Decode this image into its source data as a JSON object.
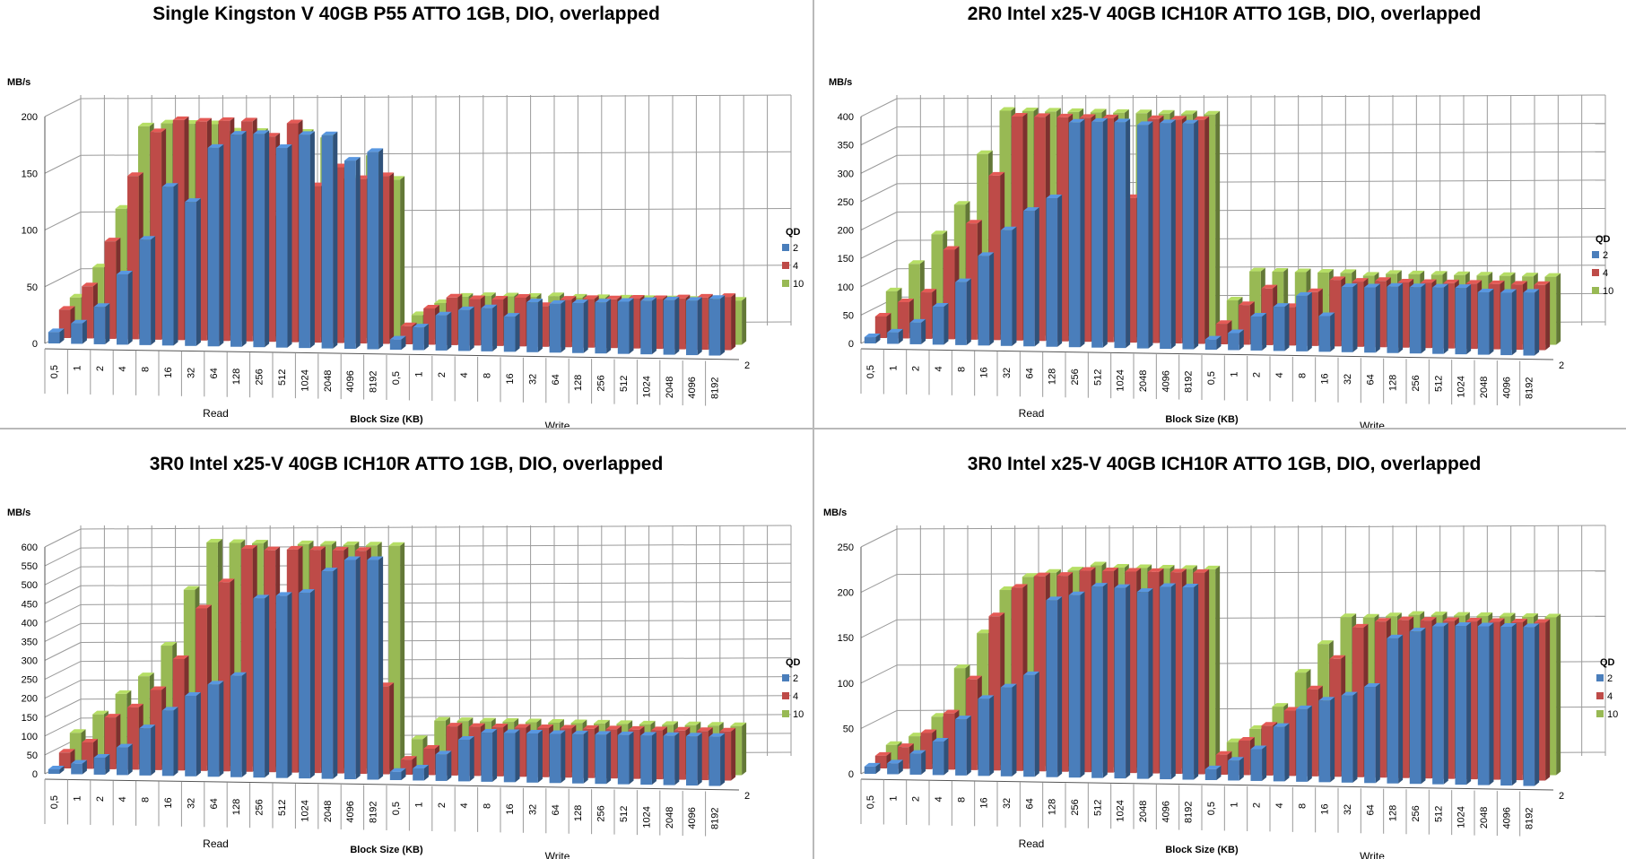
{
  "colors": {
    "qd2": "#4a7ebb",
    "qd4": "#be4b48",
    "qd10": "#98b954",
    "grid": "#9a9a9a"
  },
  "chart_data": [
    {
      "type": "bar",
      "title": "Single Kingston V 40GB P55 ATTO 1GB, DIO, overlapped",
      "ylabel": "MB/s",
      "xlabel": "Block Size (KB)",
      "groups": [
        "Read",
        "Write"
      ],
      "categories": [
        "0,5",
        "1",
        "2",
        "4",
        "8",
        "16",
        "32",
        "64",
        "128",
        "256",
        "512",
        "1024",
        "2048",
        "4096",
        "8192"
      ],
      "yticks": [
        "0",
        "50",
        "100",
        "150",
        "200"
      ],
      "ylim": [
        0,
        200
      ],
      "depth_label": "2",
      "legend": {
        "title": "QD",
        "placement": "right",
        "items": [
          "2",
          "4",
          "10"
        ]
      },
      "series": [
        {
          "name": "2",
          "read": [
            10,
            18,
            33,
            62,
            93,
            140,
            127,
            175,
            187,
            188,
            176,
            188,
            188,
            166,
            174
          ],
          "write": [
            9,
            20,
            31,
            36,
            38,
            31,
            44,
            43,
            44,
            45,
            46,
            47,
            48,
            48,
            50
          ]
        },
        {
          "name": "4",
          "read": [
            25,
            46,
            86,
            144,
            183,
            194,
            193,
            194,
            194,
            181,
            193,
            138,
            155,
            145,
            148
          ],
          "write": [
            16,
            32,
            42,
            41,
            41,
            43,
            36,
            42,
            43,
            43,
            44,
            44,
            45,
            46,
            47
          ]
        },
        {
          "name": "10",
          "read": [
            31,
            58,
            110,
            183,
            186,
            186,
            186,
            180,
            180,
            106,
            180,
            176,
            140,
            161,
            140
          ],
          "write": [
            21,
            32,
            38,
            39,
            39,
            39,
            40,
            39,
            39,
            39,
            39,
            39,
            39,
            39,
            39
          ]
        }
      ]
    },
    {
      "type": "bar",
      "title": "2R0 Intel x25-V 40GB ICH10R ATTO 1GB, DIO, overlapped",
      "ylabel": "MB/s",
      "xlabel": "Block Size (KB)",
      "groups": [
        "Read",
        "Write"
      ],
      "categories": [
        "0,5",
        "1",
        "2",
        "4",
        "8",
        "16",
        "32",
        "64",
        "128",
        "256",
        "512",
        "1024",
        "2048",
        "4096",
        "8192"
      ],
      "yticks": [
        "0",
        "50",
        "100",
        "150",
        "200",
        "250",
        "300",
        "350",
        "400"
      ],
      "ylim": [
        0,
        400
      ],
      "depth_label": "2",
      "legend": {
        "title": "QD",
        "placement": "right",
        "items": [
          "2",
          "4",
          "10"
        ]
      },
      "series": [
        {
          "name": "2",
          "read": [
            11,
            20,
            38,
            67,
            111,
            158,
            204,
            239,
            262,
            396,
            398,
            398,
            394,
            398,
            398
          ],
          "write": [
            18,
            30,
            60,
            78,
            98,
            63,
            115,
            115,
            117,
            117,
            117,
            117,
            110,
            110,
            111
          ]
        },
        {
          "name": "4",
          "read": [
            38,
            64,
            82,
            158,
            205,
            290,
            395,
            395,
            395,
            395,
            395,
            255,
            395,
            395,
            395
          ],
          "write": [
            36,
            70,
            100,
            68,
            95,
            117,
            115,
            117,
            115,
            115,
            115,
            115,
            115,
            115,
            115
          ]
        },
        {
          "name": "10",
          "read": [
            73,
            122,
            175,
            228,
            318,
            395,
            395,
            395,
            395,
            395,
            395,
            395,
            395,
            395,
            395
          ],
          "write": [
            68,
            120,
            120,
            120,
            120,
            120,
            116,
            120,
            120,
            120,
            120,
            120,
            120,
            120,
            120
          ]
        }
      ]
    },
    {
      "type": "bar",
      "title": "3R0 Intel x25-V 40GB ICH10R ATTO 1GB, DIO, overlapped",
      "ylabel": "MB/s",
      "xlabel": "Block Size (KB)",
      "groups": [
        "Read",
        "Write"
      ],
      "categories": [
        "0,5",
        "1",
        "2",
        "4",
        "8",
        "16",
        "32",
        "64",
        "128",
        "256",
        "512",
        "1024",
        "2048",
        "4096",
        "8192"
      ],
      "yticks": [
        "0",
        "50",
        "100",
        "150",
        "200",
        "250",
        "300",
        "350",
        "400",
        "450",
        "500",
        "550",
        "600"
      ],
      "ylim": [
        0,
        600
      ],
      "depth_label": "2",
      "legend": {
        "title": "QD",
        "placement": "right",
        "items": [
          "2",
          "4",
          "10"
        ]
      },
      "series": [
        {
          "name": "2",
          "read": [
            12,
            28,
            45,
            73,
            125,
            173,
            213,
            244,
            268,
            474,
            482,
            491,
            549,
            580,
            581
          ],
          "write": [
            22,
            32,
            70,
            110,
            130,
            130,
            130,
            130,
            130,
            130,
            130,
            130,
            130,
            130,
            130
          ]
        },
        {
          "name": "4",
          "read": [
            42,
            70,
            137,
            165,
            212,
            295,
            430,
            500,
            590,
            587,
            590,
            590,
            590,
            590,
            233
          ],
          "write": [
            40,
            70,
            130,
            130,
            130,
            130,
            130,
            130,
            130,
            130,
            130,
            130,
            130,
            130,
            130
          ]
        },
        {
          "name": "10",
          "read": [
            80,
            130,
            185,
            233,
            315,
            464,
            590,
            590,
            590,
            365,
            590,
            590,
            590,
            590,
            590
          ],
          "write": [
            80,
            130,
            130,
            130,
            130,
            130,
            130,
            130,
            130,
            130,
            130,
            130,
            130,
            130,
            130
          ]
        }
      ]
    },
    {
      "type": "bar",
      "title": "3R0 Intel x25-V 40GB ICH10R ATTO 1GB, DIO, overlapped",
      "ylabel": "MB/s",
      "xlabel": "Block Size (KB)",
      "groups": [
        "Read",
        "Write"
      ],
      "categories": [
        "0,5",
        "1",
        "2",
        "4",
        "8",
        "16",
        "32",
        "64",
        "128",
        "256",
        "512",
        "1024",
        "2048",
        "4096",
        "8192"
      ],
      "yticks": [
        "0",
        "50",
        "100",
        "150",
        "200",
        "250"
      ],
      "ylim": [
        0,
        250
      ],
      "depth_label": "2",
      "legend": {
        "title": "QD",
        "placement": "right",
        "items": [
          "2",
          "4",
          "10"
        ]
      },
      "series": [
        {
          "name": "2",
          "read": [
            8,
            12,
            23,
            37,
            62,
            85,
            98,
            112,
            195,
            201,
            211,
            210,
            206,
            212,
            212
          ],
          "write": [
            12,
            22,
            35,
            60,
            80,
            90,
            96,
            106,
            160,
            168,
            174,
            175,
            175,
            175,
            175
          ]
        },
        {
          "name": "4",
          "read": [
            14,
            24,
            40,
            62,
            100,
            170,
            202,
            215,
            216,
            222,
            222,
            222,
            222,
            222,
            222
          ],
          "write": [
            22,
            38,
            55,
            72,
            96,
            130,
            165,
            172,
            174,
            174,
            174,
            174,
            174,
            174,
            174
          ]
        },
        {
          "name": "10",
          "read": [
            20,
            30,
            52,
            106,
            145,
            193,
            208,
            213,
            216,
            222,
            220,
            220,
            220,
            220,
            220
          ],
          "write": [
            30,
            45,
            70,
            108,
            140,
            170,
            170,
            172,
            174,
            174,
            174,
            174,
            174,
            174,
            174
          ]
        }
      ]
    }
  ]
}
